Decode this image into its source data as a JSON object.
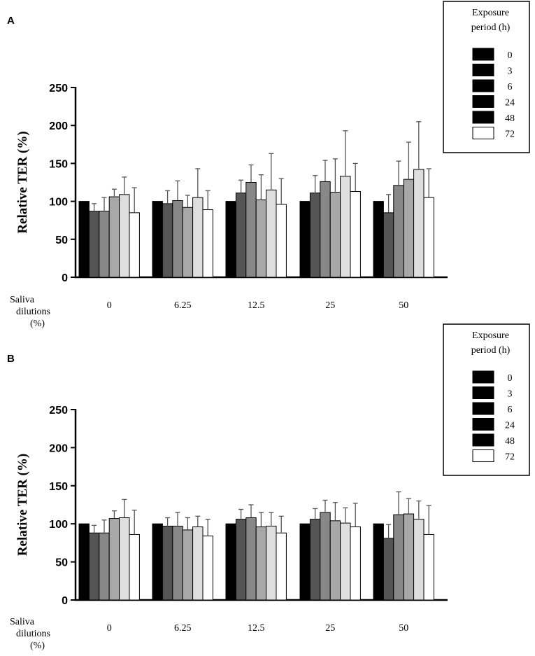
{
  "chart_data": [
    {
      "type": "bar",
      "panel_label": "A",
      "title": "",
      "xlabel": [
        "Saliva",
        "dilutions",
        "(%)"
      ],
      "ylabel": "Relative TER (%)",
      "ylim": [
        0,
        250
      ],
      "yticks": [
        "0",
        "50",
        "100",
        "150",
        "200",
        "250"
      ],
      "categories": [
        "0",
        "6.25",
        "12.5",
        "25",
        "50"
      ],
      "legend": {
        "title": [
          "Exposure",
          "period (h)"
        ],
        "position": "top-right"
      },
      "series": [
        {
          "name": "0",
          "color": "#000000",
          "values": [
            100,
            100,
            100,
            100,
            100
          ],
          "errors": [
            0,
            0,
            0,
            0,
            0
          ]
        },
        {
          "name": "3",
          "color": "#555555",
          "values": [
            87,
            97,
            111,
            111,
            85
          ],
          "errors": [
            10,
            17,
            17,
            23,
            24
          ]
        },
        {
          "name": "6",
          "color": "#888888",
          "values": [
            87,
            101,
            125,
            126,
            121
          ],
          "errors": [
            18,
            26,
            23,
            28,
            32
          ]
        },
        {
          "name": "24",
          "color": "#a8a8a8",
          "values": [
            106,
            92,
            102,
            112,
            129
          ],
          "errors": [
            10,
            16,
            33,
            44,
            49
          ]
        },
        {
          "name": "48",
          "color": "#dedede",
          "values": [
            109,
            105,
            115,
            133,
            142
          ],
          "errors": [
            23,
            38,
            48,
            60,
            63
          ]
        },
        {
          "name": "72",
          "color": "#ffffff",
          "values": [
            85,
            89,
            96,
            113,
            105
          ],
          "errors": [
            33,
            25,
            34,
            37,
            38
          ]
        }
      ]
    },
    {
      "type": "bar",
      "panel_label": "B",
      "title": "",
      "xlabel": [
        "Saliva",
        "dilutions",
        "(%)"
      ],
      "ylabel": "Relative TER (%)",
      "ylim": [
        0,
        250
      ],
      "yticks": [
        "0",
        "50",
        "100",
        "150",
        "200",
        "250"
      ],
      "categories": [
        "0",
        "6.25",
        "12.5",
        "25",
        "50"
      ],
      "legend": {
        "title": [
          "Exposure",
          "period (h)"
        ],
        "position": "top-right"
      },
      "series": [
        {
          "name": "0",
          "color": "#000000",
          "values": [
            100,
            100,
            100,
            100,
            100
          ],
          "errors": [
            0,
            0,
            0,
            0,
            0
          ]
        },
        {
          "name": "3",
          "color": "#555555",
          "values": [
            88,
            97,
            106,
            106,
            81
          ],
          "errors": [
            10,
            11,
            13,
            14,
            18
          ]
        },
        {
          "name": "6",
          "color": "#888888",
          "values": [
            88,
            97,
            108,
            115,
            112
          ],
          "errors": [
            17,
            18,
            17,
            16,
            30
          ]
        },
        {
          "name": "24",
          "color": "#a8a8a8",
          "values": [
            107,
            92,
            96,
            104,
            113
          ],
          "errors": [
            10,
            16,
            19,
            24,
            20
          ]
        },
        {
          "name": "48",
          "color": "#dedede",
          "values": [
            108,
            96,
            97,
            101,
            106
          ],
          "errors": [
            24,
            14,
            18,
            20,
            24
          ]
        },
        {
          "name": "72",
          "color": "#ffffff",
          "values": [
            86,
            84,
            88,
            96,
            86
          ],
          "errors": [
            32,
            22,
            22,
            31,
            38
          ]
        }
      ]
    }
  ]
}
